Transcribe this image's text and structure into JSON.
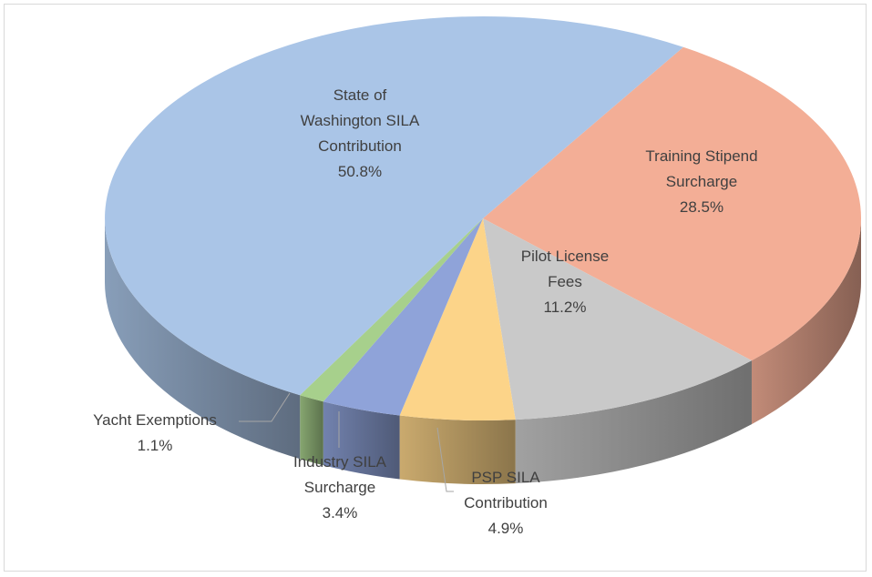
{
  "chart_data": {
    "type": "pie3d",
    "categories": [
      "Training Stipend Surcharge",
      "Pilot License Fees",
      "PSP SILA Contribution",
      "Industry SILA Surcharge",
      "Yacht Exemptions",
      "State of Washington SILA Contribution"
    ],
    "values": [
      28.5,
      11.2,
      4.9,
      3.4,
      1.1,
      50.8
    ],
    "value_labels": [
      "28.5%",
      "11.2%",
      "4.9%",
      "3.4%",
      "1.1%",
      "50.8%"
    ],
    "colors": [
      "#f3ae96",
      "#c9c9c9",
      "#fcd489",
      "#8fa3d9",
      "#a7d08c",
      "#aac5e7"
    ]
  }
}
